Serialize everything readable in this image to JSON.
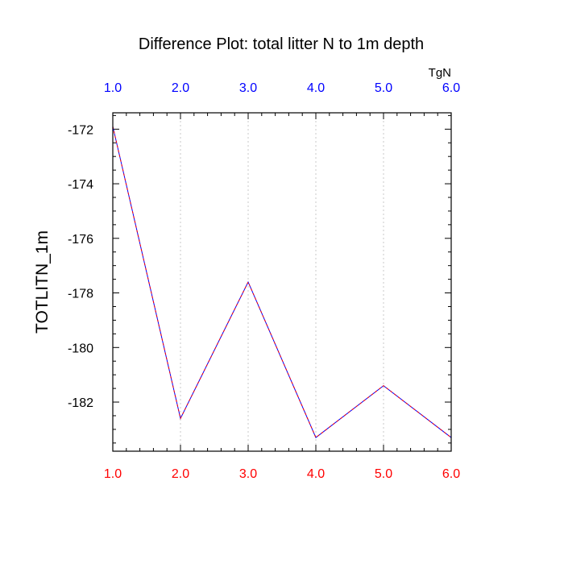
{
  "chart_data": {
    "type": "line",
    "title": "Difference Plot: total litter N to 1m depth",
    "ylabel": "TOTLITN_1m",
    "top_axis_unit": "TgN",
    "x": [
      1,
      2,
      3,
      4,
      5,
      6
    ],
    "x_tick_labels": [
      "1.0",
      "2.0",
      "3.0",
      "4.0",
      "5.0",
      "6.0"
    ],
    "y_tick_values": [
      -172,
      -174,
      -176,
      -178,
      -180,
      -182
    ],
    "y_tick_labels": [
      "-172",
      "-174",
      "-176",
      "-178",
      "-180",
      "-182"
    ],
    "xlim": [
      1,
      6
    ],
    "ylim": [
      -183.8,
      -171.4
    ],
    "series": [
      {
        "values": [
          -171.9,
          -182.6,
          -177.6,
          -183.3,
          -181.4,
          -183.3
        ],
        "color": "#8a00ff",
        "style": "dashed"
      }
    ],
    "grid": "vertical dotted at major x ticks",
    "bottom_tick_color": "#ff0000",
    "top_tick_color": "#0000ff"
  }
}
